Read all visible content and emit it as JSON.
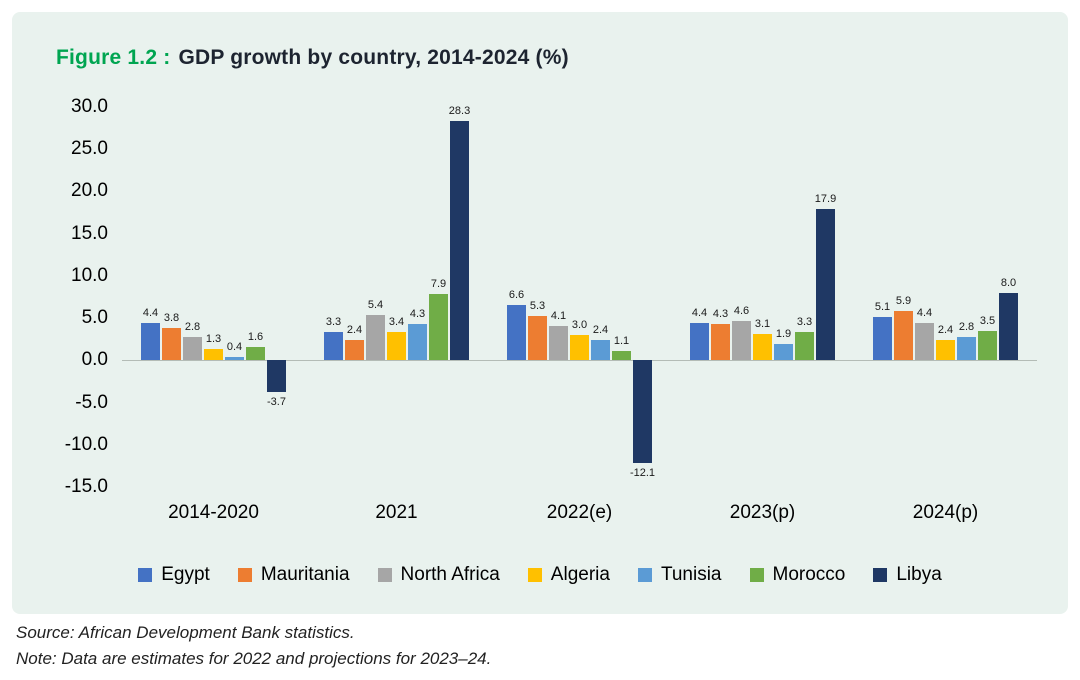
{
  "figure": {
    "label": "Figure 1.2 :",
    "title": "GDP growth by country, 2014-2024 (%)"
  },
  "source": "Source: African Development Bank statistics.",
  "note": "Note: Data are estimates for 2022 and projections for 2023–24.",
  "panel_background": "#e9f2ee",
  "figure_label_color": "#00a551",
  "chart_data": {
    "type": "bar",
    "title": "GDP growth by country, 2014-2024 (%)",
    "xlabel": "",
    "ylabel": "",
    "categories": [
      "2014-2020",
      "2021",
      "2022(e)",
      "2023(p)",
      "2024(p)"
    ],
    "series": [
      {
        "name": "Egypt",
        "color": "#4472C4",
        "values": [
          4.4,
          3.3,
          6.6,
          4.4,
          5.1
        ]
      },
      {
        "name": "Mauritania",
        "color": "#ED7D31",
        "values": [
          3.8,
          2.4,
          5.3,
          4.3,
          5.9
        ]
      },
      {
        "name": "North Africa",
        "color": "#A6A6A6",
        "values": [
          2.8,
          5.4,
          4.1,
          4.6,
          4.4
        ]
      },
      {
        "name": "Algeria",
        "color": "#FFC000",
        "values": [
          1.3,
          3.4,
          3.0,
          3.1,
          2.4
        ]
      },
      {
        "name": "Tunisia",
        "color": "#5B9BD5",
        "values": [
          0.4,
          4.3,
          2.4,
          1.9,
          2.8
        ]
      },
      {
        "name": "Morocco",
        "color": "#70AD47",
        "values": [
          1.6,
          7.9,
          1.1,
          3.3,
          3.5
        ]
      },
      {
        "name": "Libya",
        "color": "#1F3864",
        "values": [
          -3.7,
          28.3,
          -12.1,
          17.9,
          8.0
        ]
      }
    ],
    "ylim": [
      -15,
      30
    ],
    "ytick_step": 5,
    "grid": false,
    "legend_position": "bottom",
    "data_labels": true
  }
}
